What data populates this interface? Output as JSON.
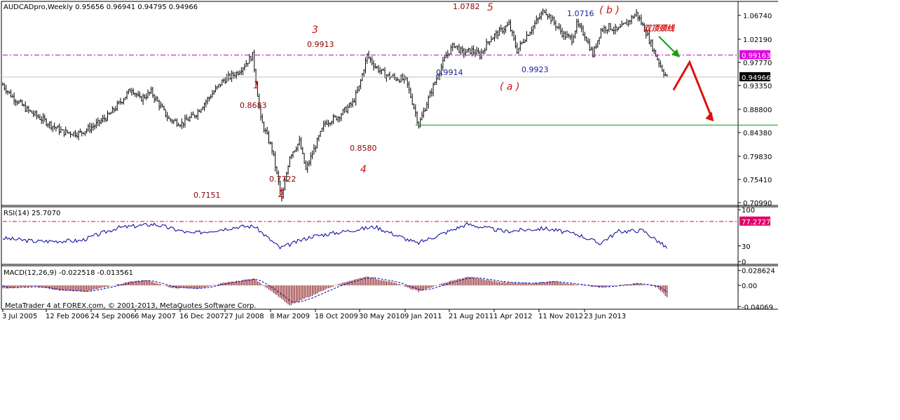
{
  "window": {
    "header": "AUDCADpro,Weekly  0.95656 0.96941 0.94795 0.94966",
    "footer": "MetaTrader 4 at FOREX.com, © 2001-2013, MetaQuotes Software Corp."
  },
  "colors": {
    "background": "#ffffff",
    "candles": "#000000",
    "resistance": "#d000d0",
    "support": "#00a000",
    "rsi_line": "#00009c",
    "rsi_level": "#e0004c",
    "macd_bars": "#8b1a1a",
    "signal_line": "#0000c8",
    "wave_labels": "#cc1111",
    "price_labels": "#8b0000",
    "blue_labels": "#1a1aa0",
    "down_arrow": "#dd1111",
    "note_arrow": "#11a011",
    "current_price_tag": "#000000",
    "resistance_tag": "#e000e0",
    "rsi_tag": "#e0006a"
  },
  "chart_data": [
    {
      "type": "candlestick",
      "pane": "price",
      "symbol": "AUDCADpro",
      "timeframe": "Weekly",
      "ohlc_last": {
        "open": 0.95656,
        "high": 0.96941,
        "low": 0.94795,
        "close": 0.94966
      },
      "ylim": [
        0.7099,
        1.0874
      ],
      "ytick_labels": [
        "1.06740",
        "1.02190",
        "0.97770",
        "0.93350",
        "0.88800",
        "0.84380",
        "0.79830",
        "0.75410",
        "0.70990"
      ],
      "xtick_labels": [
        "3 Jul 2005",
        "12 Feb 2006",
        "24 Sep 2006",
        "6 May 2007",
        "16 Dec 2007",
        "27 Jul 2008",
        "8 Mar 2009",
        "18 Oct 2009",
        "30 May 2010",
        "9 Jan 2011",
        "21 Aug 2011",
        "1 Apr 2012",
        "11 Nov 2012",
        "23 Jun 2013"
      ],
      "price_path": [
        {
          "date": "2005-07-03",
          "value": 0.935
        },
        {
          "date": "2005-08-07",
          "value": 0.915
        },
        {
          "date": "2005-10-16",
          "value": 0.887
        },
        {
          "date": "2006-01-08",
          "value": 0.864
        },
        {
          "date": "2006-03-19",
          "value": 0.845
        },
        {
          "date": "2006-05-28",
          "value": 0.842
        },
        {
          "date": "2006-08-06",
          "value": 0.857
        },
        {
          "date": "2006-10-08",
          "value": 0.877
        },
        {
          "date": "2007-01-14",
          "value": 0.928
        },
        {
          "date": "2007-02-18",
          "value": 0.907
        },
        {
          "date": "2007-04-08",
          "value": 0.921
        },
        {
          "date": "2007-05-27",
          "value": 0.888
        },
        {
          "date": "2007-06-24",
          "value": 0.869
        },
        {
          "date": "2007-08-19",
          "value": 0.861
        },
        {
          "date": "2007-10-14",
          "value": 0.877
        },
        {
          "date": "2007-12-16",
          "value": 0.911
        },
        {
          "date": "2008-02-17",
          "value": 0.944
        },
        {
          "date": "2008-04-13",
          "value": 0.957
        },
        {
          "date": "2008-05-18",
          "value": 0.973
        },
        {
          "date": "2008-06-22",
          "value": 0.9913
        },
        {
          "date": "2008-07-27",
          "value": 0.8683
        },
        {
          "date": "2008-09-14",
          "value": 0.812
        },
        {
          "date": "2008-10-26",
          "value": 0.7151
        },
        {
          "date": "2008-11-30",
          "value": 0.8
        },
        {
          "date": "2009-01-11",
          "value": 0.826
        },
        {
          "date": "2009-02-08",
          "value": 0.7722
        },
        {
          "date": "2009-03-22",
          "value": 0.819
        },
        {
          "date": "2009-05-03",
          "value": 0.863
        },
        {
          "date": "2009-06-28",
          "value": 0.874
        },
        {
          "date": "2009-08-30",
          "value": 0.9
        },
        {
          "date": "2009-09-27",
          "value": 0.93
        },
        {
          "date": "2009-11-01",
          "value": 0.9913
        },
        {
          "date": "2009-12-06",
          "value": 0.97
        },
        {
          "date": "2010-01-17",
          "value": 0.954
        },
        {
          "date": "2010-02-28",
          "value": 0.948
        },
        {
          "date": "2010-04-18",
          "value": 0.944
        },
        {
          "date": "2010-05-23",
          "value": 0.8924
        },
        {
          "date": "2010-06-13",
          "value": 0.858
        },
        {
          "date": "2010-07-18",
          "value": 0.9
        },
        {
          "date": "2010-08-29",
          "value": 0.948
        },
        {
          "date": "2010-10-10",
          "value": 0.99
        },
        {
          "date": "2010-11-14",
          "value": 1.012
        },
        {
          "date": "2010-12-19",
          "value": 0.996
        },
        {
          "date": "2011-01-30",
          "value": 1.0
        },
        {
          "date": "2011-03-06",
          "value": 0.9914
        },
        {
          "date": "2011-04-17",
          "value": 1.022
        },
        {
          "date": "2011-05-29",
          "value": 1.036
        },
        {
          "date": "2011-07-10",
          "value": 1.05
        },
        {
          "date": "2011-08-14",
          "value": 1.0
        },
        {
          "date": "2011-09-18",
          "value": 1.025
        },
        {
          "date": "2011-10-30",
          "value": 1.051
        },
        {
          "date": "2011-12-11",
          "value": 1.0782
        },
        {
          "date": "2012-01-22",
          "value": 1.053
        },
        {
          "date": "2012-03-04",
          "value": 1.03
        },
        {
          "date": "2012-04-08",
          "value": 1.022
        },
        {
          "date": "2012-04-29",
          "value": 1.05
        },
        {
          "date": "2012-06-03",
          "value": 1.03
        },
        {
          "date": "2012-07-08",
          "value": 0.9923
        },
        {
          "date": "2012-08-12",
          "value": 1.04
        },
        {
          "date": "2012-09-16",
          "value": 1.046
        },
        {
          "date": "2012-10-21",
          "value": 1.038
        },
        {
          "date": "2012-11-25",
          "value": 1.05
        },
        {
          "date": "2013-01-13",
          "value": 1.0716
        },
        {
          "date": "2013-02-24",
          "value": 1.035
        },
        {
          "date": "2013-04-07",
          "value": 0.9916
        },
        {
          "date": "2013-05-12",
          "value": 0.958
        },
        {
          "date": "2013-05-26",
          "value": 0.94966
        }
      ],
      "levels": [
        {
          "price": 0.99163,
          "style": "dash-dot",
          "label": "0.99163"
        },
        {
          "price": 0.858,
          "style": "solid",
          "from": "2010-05-30"
        }
      ],
      "current_price_label": "0.94966",
      "price_annotations": [
        "0.7151",
        "0.8683",
        "0.7722",
        "0.9913",
        "0.8580",
        "1.0782",
        "0.9914",
        "0.9923",
        "1.0716"
      ],
      "wave_labels": [
        "1",
        "2",
        "3",
        "4",
        "5",
        "( a )",
        "( b )"
      ],
      "note_text": "双顶颈线",
      "projection": [
        {
          "date": "2013-06-23",
          "value": 0.925
        },
        {
          "date": "2013-09-01",
          "value": 0.978
        },
        {
          "date": "2013-12-15",
          "value": 0.865
        }
      ]
    },
    {
      "type": "line",
      "pane": "rsi",
      "indicator": "RSI(14)",
      "title": "RSI(14) 25.7070",
      "ylim": [
        0,
        100
      ],
      "ytick_labels": [
        "100",
        "30",
        "0"
      ],
      "levels": [
        77.2727
      ],
      "level_label": "77.2727",
      "last": 25.707,
      "series": [
        {
          "date": "2005-07-03",
          "value": 45
        },
        {
          "date": "2005-11-20",
          "value": 39
        },
        {
          "date": "2006-06-04",
          "value": 40
        },
        {
          "date": "2006-11-12",
          "value": 65
        },
        {
          "date": "2007-04-22",
          "value": 72
        },
        {
          "date": "2007-09-30",
          "value": 54
        },
        {
          "date": "2008-04-20",
          "value": 67
        },
        {
          "date": "2008-06-29",
          "value": 68
        },
        {
          "date": "2008-10-19",
          "value": 26
        },
        {
          "date": "2009-03-01",
          "value": 48
        },
        {
          "date": "2009-09-06",
          "value": 61
        },
        {
          "date": "2009-12-06",
          "value": 67
        },
        {
          "date": "2010-06-06",
          "value": 35
        },
        {
          "date": "2011-01-09",
          "value": 72
        },
        {
          "date": "2011-06-19",
          "value": 58
        },
        {
          "date": "2011-12-11",
          "value": 64
        },
        {
          "date": "2012-05-06",
          "value": 52
        },
        {
          "date": "2012-08-05",
          "value": 35
        },
        {
          "date": "2012-10-28",
          "value": 58
        },
        {
          "date": "2013-02-10",
          "value": 60
        },
        {
          "date": "2013-04-21",
          "value": 38
        },
        {
          "date": "2013-05-26",
          "value": 25.7
        }
      ]
    },
    {
      "type": "bar",
      "pane": "macd",
      "indicator": "MACD(12,26,9)",
      "title": "MACD(12,26,9) -0.022518 -0.013561",
      "main": -0.022518,
      "signal": -0.013561,
      "ylim": [
        -0.043,
        0.035
      ],
      "ytick_labels": [
        "0.028624",
        "0.00",
        "-0.04069"
      ],
      "histogram_path": [
        {
          "date": "2005-07-03",
          "value": -0.006
        },
        {
          "date": "2005-11-20",
          "value": -0.002
        },
        {
          "date": "2006-03-12",
          "value": -0.01
        },
        {
          "date": "2006-06-25",
          "value": -0.012
        },
        {
          "date": "2007-01-14",
          "value": 0.008
        },
        {
          "date": "2007-03-18",
          "value": 0.01
        },
        {
          "date": "2007-07-08",
          "value": -0.005
        },
        {
          "date": "2007-11-04",
          "value": -0.006
        },
        {
          "date": "2008-02-17",
          "value": 0.005
        },
        {
          "date": "2008-06-29",
          "value": 0.013
        },
        {
          "date": "2008-09-14",
          "value": -0.012
        },
        {
          "date": "2008-11-30",
          "value": -0.038
        },
        {
          "date": "2009-03-15",
          "value": -0.018
        },
        {
          "date": "2009-07-05",
          "value": 0.004
        },
        {
          "date": "2009-11-01",
          "value": 0.017
        },
        {
          "date": "2010-03-07",
          "value": 0.004
        },
        {
          "date": "2010-06-13",
          "value": -0.012
        },
        {
          "date": "2010-10-10",
          "value": 0.006
        },
        {
          "date": "2011-01-09",
          "value": 0.017
        },
        {
          "date": "2011-06-05",
          "value": 0.006
        },
        {
          "date": "2011-10-16",
          "value": 0.004
        },
        {
          "date": "2012-01-08",
          "value": 0.008
        },
        {
          "date": "2012-08-05",
          "value": -0.004
        },
        {
          "date": "2013-01-20",
          "value": 0.004
        },
        {
          "date": "2013-04-14",
          "value": -0.004
        },
        {
          "date": "2013-05-26",
          "value": -0.022518
        }
      ]
    }
  ]
}
